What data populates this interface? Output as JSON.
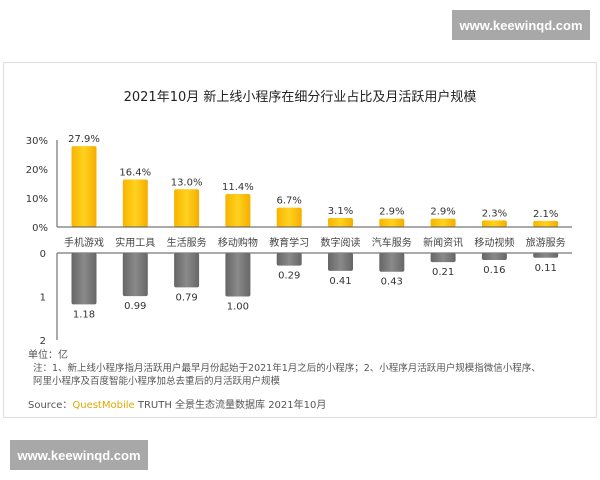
{
  "watermark_top": "www.keewinqd.com",
  "watermark_bottom": "www.keewinqd.com",
  "colors": {
    "bar_top": "#fcc419",
    "bar_bottom": "#777777",
    "source_brand": "#e0a800"
  },
  "chart_data": [
    {
      "type": "bar",
      "title": "2021年10月 新上线小程序在细分行业占比及月活跃用户规模",
      "categories": [
        "手机游戏",
        "实用工具",
        "生活服务",
        "移动购物",
        "教育学习",
        "数字阅读",
        "汽车服务",
        "新闻资讯",
        "移动视频",
        "旅游服务"
      ],
      "values": [
        27.9,
        16.4,
        13.0,
        11.4,
        6.7,
        3.1,
        2.9,
        2.9,
        2.3,
        2.1
      ],
      "labels": [
        "27.9%",
        "16.4%",
        "13.0%",
        "11.4%",
        "6.7%",
        "3.1%",
        "2.9%",
        "2.9%",
        "2.3%",
        "2.1%"
      ],
      "yticks": [
        "0%",
        "10%",
        "20%",
        "30%"
      ],
      "ylim": [
        0,
        30
      ]
    },
    {
      "type": "bar",
      "orientation": "downward",
      "categories": [
        "手机游戏",
        "实用工具",
        "生活服务",
        "移动购物",
        "教育学习",
        "数字阅读",
        "汽车服务",
        "新闻资讯",
        "移动视频",
        "旅游服务"
      ],
      "values": [
        1.18,
        0.99,
        0.79,
        1.0,
        0.29,
        0.41,
        0.43,
        0.21,
        0.16,
        0.11
      ],
      "labels": [
        "1.18",
        "0.99",
        "0.79",
        "1.00",
        "0.29",
        "0.41",
        "0.43",
        "0.21",
        "0.16",
        "0.11"
      ],
      "yticks": [
        "0",
        "1",
        "2"
      ],
      "ylim": [
        0,
        2
      ],
      "unit": "单位：亿"
    }
  ],
  "notes": {
    "line1": "注：1、新上线小程序指月活跃用户最早月份起始于2021年1月之后的小程序；2、小程序月活跃用户规模指微信小程序、",
    "line2": "阿里小程序及百度智能小程序加总去重后的月活跃用户规模"
  },
  "source": {
    "prefix": "Source：",
    "brand": "QuestMobile",
    "rest": " TRUTH 全景生态流量数据库 2021年10月"
  }
}
